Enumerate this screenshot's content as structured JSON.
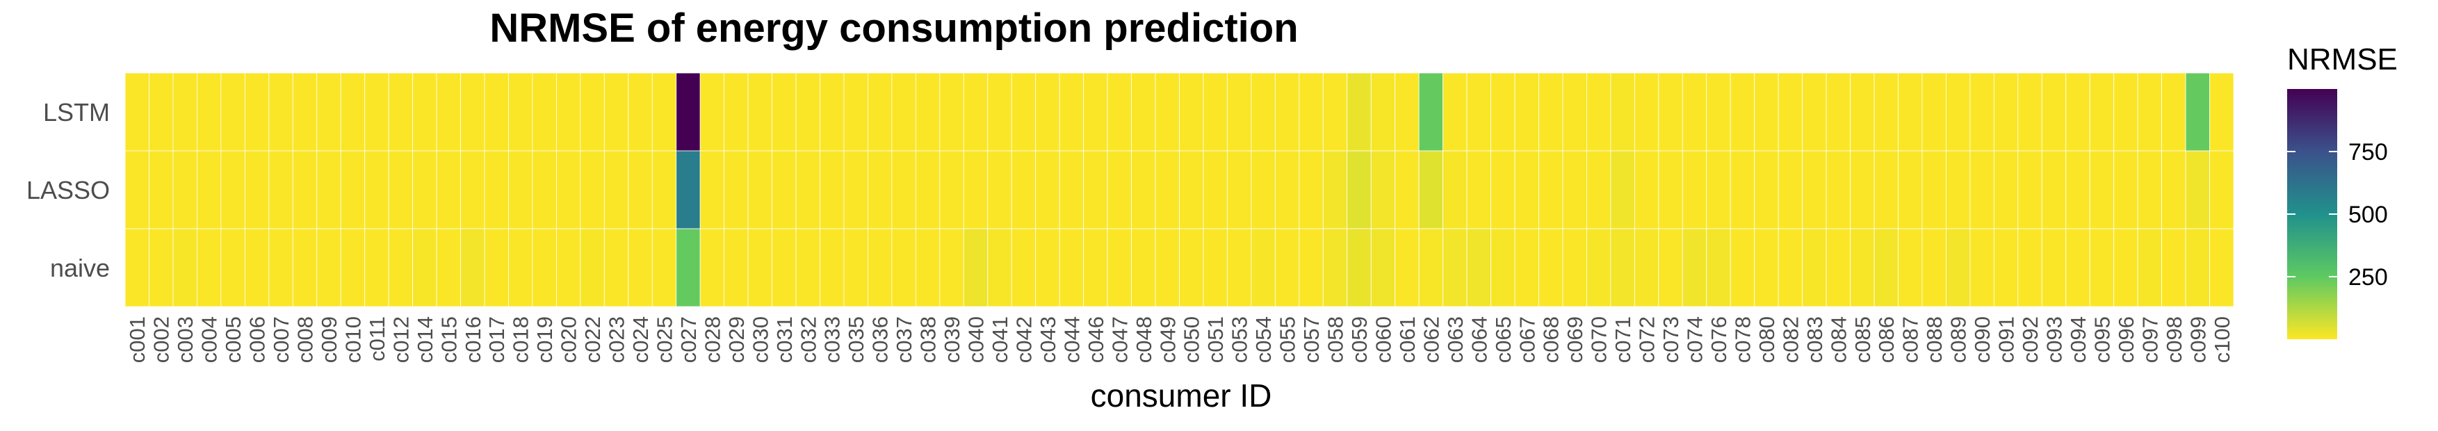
{
  "chart_data": {
    "type": "heatmap",
    "title": "NRMSE of energy consumption prediction",
    "xlabel": "consumer ID",
    "ylabel": "",
    "legend": {
      "title": "NRMSE",
      "placement": "right",
      "ticks": [
        250,
        500,
        750
      ],
      "range": [
        0,
        1000
      ],
      "palette": "viridis-reversed",
      "colors": [
        "#fde725",
        "#5ec962",
        "#21918c",
        "#3b528b",
        "#440154"
      ]
    },
    "rows": [
      "LSTM",
      "LASSO",
      "naive"
    ],
    "columns": [
      "c001",
      "c002",
      "c003",
      "c004",
      "c005",
      "c006",
      "c007",
      "c008",
      "c009",
      "c010",
      "c011",
      "c012",
      "c014",
      "c015",
      "c016",
      "c017",
      "c018",
      "c019",
      "c020",
      "c022",
      "c023",
      "c024",
      "c025",
      "c027",
      "c028",
      "c029",
      "c030",
      "c031",
      "c032",
      "c033",
      "c035",
      "c036",
      "c037",
      "c038",
      "c039",
      "c040",
      "c041",
      "c042",
      "c043",
      "c044",
      "c046",
      "c047",
      "c048",
      "c049",
      "c050",
      "c051",
      "c053",
      "c054",
      "c055",
      "c057",
      "c058",
      "c059",
      "c060",
      "c061",
      "c062",
      "c063",
      "c064",
      "c065",
      "c067",
      "c068",
      "c069",
      "c070",
      "c071",
      "c072",
      "c073",
      "c074",
      "c076",
      "c078",
      "c080",
      "c082",
      "c083",
      "c084",
      "c085",
      "c086",
      "c087",
      "c088",
      "c089",
      "c090",
      "c091",
      "c092",
      "c093",
      "c094",
      "c095",
      "c096",
      "c097",
      "c098",
      "c099",
      "c100"
    ],
    "values": [
      [
        5,
        5,
        5,
        5,
        5,
        5,
        5,
        5,
        5,
        5,
        5,
        5,
        5,
        5,
        5,
        5,
        5,
        5,
        5,
        5,
        5,
        5,
        5,
        1000,
        5,
        5,
        5,
        5,
        5,
        5,
        5,
        5,
        5,
        5,
        5,
        5,
        5,
        5,
        5,
        5,
        5,
        5,
        5,
        5,
        5,
        5,
        5,
        5,
        5,
        5,
        5,
        30,
        10,
        5,
        240,
        5,
        5,
        5,
        5,
        5,
        5,
        5,
        10,
        5,
        5,
        5,
        5,
        5,
        5,
        5,
        5,
        5,
        5,
        5,
        5,
        5,
        5,
        5,
        5,
        5,
        5,
        5,
        5,
        5,
        5,
        5,
        240,
        5
      ],
      [
        5,
        5,
        5,
        5,
        5,
        5,
        5,
        5,
        5,
        5,
        5,
        5,
        5,
        5,
        5,
        5,
        5,
        5,
        5,
        5,
        5,
        5,
        5,
        580,
        5,
        5,
        5,
        5,
        5,
        5,
        5,
        5,
        5,
        5,
        5,
        5,
        5,
        5,
        5,
        5,
        5,
        5,
        5,
        5,
        5,
        5,
        5,
        5,
        5,
        5,
        15,
        45,
        15,
        5,
        45,
        10,
        5,
        5,
        5,
        5,
        5,
        5,
        20,
        5,
        5,
        5,
        5,
        5,
        5,
        5,
        5,
        5,
        5,
        5,
        5,
        5,
        5,
        5,
        5,
        5,
        5,
        5,
        5,
        5,
        5,
        5,
        20,
        5
      ],
      [
        5,
        5,
        10,
        5,
        5,
        5,
        5,
        5,
        5,
        5,
        5,
        5,
        10,
        5,
        15,
        5,
        5,
        5,
        5,
        10,
        5,
        5,
        5,
        240,
        5,
        5,
        5,
        5,
        5,
        5,
        5,
        5,
        5,
        5,
        5,
        25,
        10,
        5,
        5,
        5,
        5,
        5,
        5,
        5,
        5,
        5,
        5,
        10,
        5,
        5,
        15,
        30,
        20,
        5,
        10,
        15,
        20,
        10,
        5,
        5,
        5,
        10,
        15,
        10,
        5,
        20,
        15,
        5,
        5,
        5,
        10,
        5,
        10,
        15,
        5,
        5,
        15,
        5,
        5,
        5,
        5,
        5,
        5,
        5,
        10,
        5,
        10,
        5
      ]
    ]
  }
}
